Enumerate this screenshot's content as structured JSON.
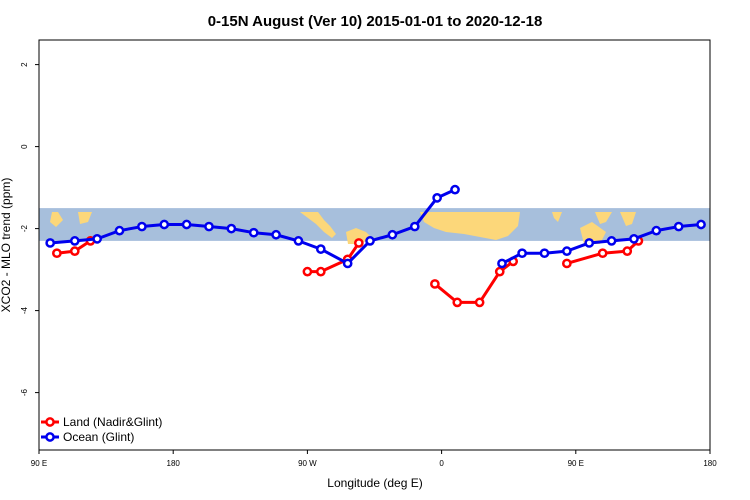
{
  "chart_data": {
    "type": "line",
    "title": "0-15N August (Ver 10)   2015-01-01 to 2020-12-18",
    "xlabel": "Longitude (deg E)",
    "ylabel": "XCO2 - MLO trend (ppm)",
    "xlim": [
      90,
      390
    ],
    "ylim": [
      -7.4,
      2.6
    ],
    "x_ticks": [
      {
        "value": 90,
        "label": "90 E"
      },
      {
        "value": 150,
        "label": "180"
      },
      {
        "value": 210,
        "label": "90 W"
      },
      {
        "value": 270,
        "label": "0"
      },
      {
        "value": 330,
        "label": "90 E"
      },
      {
        "value": 390,
        "label": "180"
      }
    ],
    "y_ticks": [
      {
        "value": 2,
        "label": "2"
      },
      {
        "value": 0,
        "label": "0"
      },
      {
        "value": -2,
        "label": "-2"
      },
      {
        "value": -4,
        "label": "-4"
      },
      {
        "value": -6,
        "label": "-6"
      }
    ],
    "map_band": {
      "lat_range": [
        0,
        15
      ],
      "ymin": -2.3,
      "ymax": -1.5,
      "ocean_color": "#a7bfdc",
      "land_color": "#fcd77a"
    },
    "legend_position": "bottom-left",
    "series": [
      {
        "name": "Land (Nadir&Glint)",
        "color": "#ff0000",
        "segments": [
          [
            [
              98,
              -2.6
            ],
            [
              106,
              -2.55
            ],
            [
              113,
              -2.3
            ]
          ],
          [
            [
              210,
              -3.05
            ],
            [
              216,
              -3.05
            ],
            [
              228,
              -2.75
            ],
            [
              233,
              -2.35
            ]
          ],
          [
            [
              267,
              -3.35
            ],
            [
              277,
              -3.8
            ],
            [
              287,
              -3.8
            ],
            [
              296,
              -3.05
            ],
            [
              302,
              -2.8
            ]
          ],
          [
            [
              326,
              -2.85
            ],
            [
              342,
              -2.6
            ],
            [
              353,
              -2.55
            ],
            [
              358,
              -2.3
            ]
          ]
        ]
      },
      {
        "name": "Ocean (Glint)",
        "color": "#0000ee",
        "segments": [
          [
            [
              95,
              -2.35
            ],
            [
              106,
              -2.3
            ],
            [
              116,
              -2.25
            ],
            [
              126,
              -2.05
            ],
            [
              136,
              -1.95
            ],
            [
              146,
              -1.9
            ],
            [
              156,
              -1.9
            ],
            [
              166,
              -1.95
            ],
            [
              176,
              -2.0
            ],
            [
              186,
              -2.1
            ],
            [
              196,
              -2.15
            ],
            [
              206,
              -2.3
            ],
            [
              216,
              -2.5
            ],
            [
              228,
              -2.85
            ],
            [
              238,
              -2.3
            ],
            [
              248,
              -2.15
            ],
            [
              258,
              -1.95
            ],
            [
              268,
              -1.25
            ],
            [
              276,
              -1.05
            ]
          ],
          [
            [
              297,
              -2.85
            ],
            [
              306,
              -2.6
            ],
            [
              316,
              -2.6
            ],
            [
              326,
              -2.55
            ],
            [
              336,
              -2.35
            ],
            [
              346,
              -2.3
            ],
            [
              356,
              -2.25
            ],
            [
              366,
              -2.05
            ],
            [
              376,
              -1.95
            ],
            [
              386,
              -1.9
            ]
          ]
        ]
      }
    ]
  }
}
